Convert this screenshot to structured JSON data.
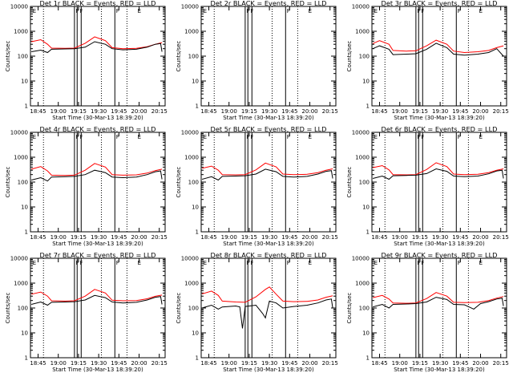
{
  "figure": {
    "xlabel": "Start Time (30-Mar-13 18:39:20)",
    "ylabel": "Counts/sec",
    "x_ticks": [
      "18:45",
      "19:00",
      "19:15",
      "19:30",
      "19:45",
      "20:00",
      "20:15"
    ],
    "y_ticks": [
      "1",
      "10",
      "100",
      "1000",
      "10000"
    ],
    "colors": {
      "events": "#000000",
      "lld": "#ff0000",
      "frame": "#000000"
    }
  },
  "chart_data": [
    {
      "type": "line",
      "title": "Det 1r BLACK = Events, RED = LLD",
      "ylim": [
        1,
        10000
      ],
      "xlim": [
        "18:39:20",
        "20:19:20"
      ],
      "log_y": true,
      "gti_dotted": [
        "18:49",
        "19:32",
        "19:51"
      ],
      "saa_solid": [
        "19:12",
        "19:14",
        "19:17",
        "19:42"
      ],
      "flags": [
        {
          "t": "18:40",
          "c": "E"
        },
        {
          "t": "19:12",
          "c": "F"
        },
        {
          "t": "19:15",
          "c": "F"
        },
        {
          "t": "19:42",
          "c": "F"
        },
        {
          "t": "19:58",
          "c": "E"
        }
      ],
      "series": [
        {
          "name": "BLACK = Events",
          "x": [
            "18:40",
            "18:47",
            "18:52",
            "18:55",
            "19:05",
            "19:12",
            "19:20",
            "19:27",
            "19:35",
            "19:40",
            "19:48",
            "19:58",
            "20:06",
            "20:12",
            "20:16",
            "20:17"
          ],
          "values": [
            150,
            175,
            140,
            190,
            195,
            200,
            230,
            380,
            300,
            200,
            180,
            190,
            230,
            300,
            320,
            150
          ]
        },
        {
          "name": "RED = LLD",
          "x": [
            "18:40",
            "18:47",
            "18:52",
            "18:55",
            "19:05",
            "19:12",
            "19:20",
            "19:27",
            "19:35",
            "19:40",
            "19:48",
            "19:58",
            "20:06",
            "20:12",
            "20:17"
          ],
          "values": [
            380,
            460,
            300,
            210,
            205,
            210,
            330,
            600,
            420,
            220,
            200,
            205,
            240,
            300,
            350
          ]
        }
      ]
    },
    {
      "type": "line",
      "title": "Det 2r BLACK = Events, RED = LLD",
      "ylim": [
        1,
        10000
      ],
      "xlim": [
        "18:39:20",
        "20:19:20"
      ],
      "log_y": true,
      "gti_dotted": [
        "18:49",
        "19:32",
        "19:51"
      ],
      "saa_solid": [
        "19:12",
        "19:14",
        "19:17",
        "19:42"
      ],
      "flags": [
        {
          "t": "18:40",
          "c": "E"
        },
        {
          "t": "19:12",
          "c": "F"
        },
        {
          "t": "19:15",
          "c": "F"
        },
        {
          "t": "19:42",
          "c": "F"
        },
        {
          "t": "19:58",
          "c": "E"
        }
      ],
      "series": []
    },
    {
      "type": "line",
      "title": "Det 3r BLACK = Events, RED = LLD",
      "ylim": [
        1,
        10000
      ],
      "xlim": [
        "18:39:20",
        "20:19:20"
      ],
      "log_y": true,
      "gti_dotted": [
        "18:49",
        "19:32",
        "19:51"
      ],
      "saa_solid": [
        "19:12",
        "19:14",
        "19:17",
        "19:42"
      ],
      "flags": [
        {
          "t": "18:40",
          "c": "E"
        },
        {
          "t": "19:12",
          "c": "F"
        },
        {
          "t": "19:15",
          "c": "F"
        },
        {
          "t": "19:42",
          "c": "F"
        },
        {
          "t": "19:58",
          "c": "E"
        }
      ],
      "series": [
        {
          "name": "BLACK = Events",
          "x": [
            "18:40",
            "18:45",
            "18:52",
            "18:55",
            "19:05",
            "19:12",
            "19:20",
            "19:27",
            "19:35",
            "19:40",
            "19:48",
            "19:58",
            "20:06",
            "20:12",
            "20:17"
          ],
          "values": [
            200,
            260,
            190,
            115,
            120,
            125,
            190,
            330,
            220,
            120,
            110,
            120,
            140,
            200,
            100
          ]
        },
        {
          "name": "RED = LLD",
          "x": [
            "18:40",
            "18:45",
            "18:52",
            "18:55",
            "19:05",
            "19:12",
            "19:20",
            "19:27",
            "19:35",
            "19:40",
            "19:48",
            "19:58",
            "20:06",
            "20:12",
            "20:17"
          ],
          "values": [
            320,
            420,
            300,
            170,
            160,
            165,
            260,
            440,
            300,
            160,
            140,
            150,
            170,
            220,
            260
          ]
        }
      ]
    },
    {
      "type": "line",
      "title": "Det 4r BLACK = Events, RED = LLD",
      "ylim": [
        1,
        10000
      ],
      "xlim": [
        "18:39:20",
        "20:19:20"
      ],
      "log_y": true,
      "gti_dotted": [
        "18:49",
        "19:32",
        "19:51"
      ],
      "saa_solid": [
        "19:12",
        "19:14",
        "19:17",
        "19:42"
      ],
      "flags": [
        {
          "t": "18:40",
          "c": "E"
        },
        {
          "t": "19:12",
          "c": "F"
        },
        {
          "t": "19:15",
          "c": "F"
        },
        {
          "t": "19:42",
          "c": "F"
        },
        {
          "t": "19:58",
          "c": "E"
        }
      ],
      "series": [
        {
          "name": "BLACK = Events",
          "x": [
            "18:40",
            "18:47",
            "18:52",
            "18:55",
            "19:05",
            "19:12",
            "19:20",
            "19:27",
            "19:35",
            "19:40",
            "19:48",
            "19:58",
            "20:06",
            "20:12",
            "20:16",
            "20:17"
          ],
          "values": [
            120,
            150,
            110,
            160,
            165,
            170,
            200,
            300,
            240,
            160,
            150,
            160,
            200,
            260,
            280,
            130
          ]
        },
        {
          "name": "RED = LLD",
          "x": [
            "18:40",
            "18:47",
            "18:52",
            "18:55",
            "19:05",
            "19:12",
            "19:20",
            "19:27",
            "19:35",
            "19:40",
            "19:48",
            "19:58",
            "20:06",
            "20:12",
            "20:17"
          ],
          "values": [
            330,
            420,
            280,
            190,
            185,
            190,
            300,
            560,
            400,
            200,
            190,
            195,
            230,
            290,
            330
          ]
        }
      ]
    },
    {
      "type": "line",
      "title": "Det 5r BLACK = Events, RED = LLD",
      "ylim": [
        1,
        10000
      ],
      "xlim": [
        "18:39:20",
        "20:19:20"
      ],
      "log_y": true,
      "gti_dotted": [
        "18:49",
        "19:32",
        "19:51"
      ],
      "saa_solid": [
        "19:12",
        "19:14",
        "19:17",
        "19:42"
      ],
      "flags": [
        {
          "t": "18:40",
          "c": "E"
        },
        {
          "t": "19:12",
          "c": "F"
        },
        {
          "t": "19:15",
          "c": "F"
        },
        {
          "t": "19:42",
          "c": "F"
        },
        {
          "t": "19:58",
          "c": "E"
        }
      ],
      "series": [
        {
          "name": "BLACK = Events",
          "x": [
            "18:40",
            "18:47",
            "18:52",
            "18:55",
            "19:05",
            "19:12",
            "19:20",
            "19:27",
            "19:35",
            "19:40",
            "19:48",
            "19:58",
            "20:06",
            "20:12",
            "20:16",
            "20:17"
          ],
          "values": [
            130,
            165,
            120,
            170,
            175,
            180,
            210,
            330,
            260,
            170,
            160,
            170,
            210,
            270,
            290,
            140
          ]
        },
        {
          "name": "RED = LLD",
          "x": [
            "18:40",
            "18:47",
            "18:52",
            "18:55",
            "19:05",
            "19:12",
            "19:20",
            "19:27",
            "19:35",
            "19:40",
            "19:48",
            "19:58",
            "20:06",
            "20:12",
            "20:17"
          ],
          "values": [
            360,
            440,
            300,
            200,
            195,
            200,
            310,
            580,
            410,
            210,
            200,
            205,
            240,
            300,
            340
          ]
        }
      ]
    },
    {
      "type": "line",
      "title": "Det 6r BLACK = Events, RED = LLD",
      "ylim": [
        1,
        10000
      ],
      "xlim": [
        "18:39:20",
        "20:19:20"
      ],
      "log_y": true,
      "gti_dotted": [
        "18:49",
        "19:32",
        "19:51"
      ],
      "saa_solid": [
        "19:12",
        "19:14",
        "19:17",
        "19:42"
      ],
      "flags": [
        {
          "t": "18:40",
          "c": "E"
        },
        {
          "t": "19:12",
          "c": "F"
        },
        {
          "t": "19:15",
          "c": "F"
        },
        {
          "t": "19:42",
          "c": "F"
        },
        {
          "t": "19:58",
          "c": "E"
        }
      ],
      "series": [
        {
          "name": "BLACK = Events",
          "x": [
            "18:40",
            "18:47",
            "18:52",
            "18:55",
            "19:05",
            "19:12",
            "19:20",
            "19:27",
            "19:35",
            "19:40",
            "19:48",
            "19:58",
            "20:06",
            "20:12",
            "20:16",
            "20:17"
          ],
          "values": [
            140,
            175,
            130,
            180,
            185,
            190,
            220,
            340,
            270,
            175,
            165,
            175,
            215,
            280,
            300,
            140
          ]
        },
        {
          "name": "RED = LLD",
          "x": [
            "18:40",
            "18:47",
            "18:52",
            "18:55",
            "19:05",
            "19:12",
            "19:20",
            "19:27",
            "19:35",
            "19:40",
            "19:48",
            "19:58",
            "20:06",
            "20:12",
            "20:17"
          ],
          "values": [
            380,
            460,
            310,
            200,
            195,
            200,
            320,
            600,
            420,
            210,
            200,
            205,
            240,
            300,
            340
          ]
        }
      ]
    },
    {
      "type": "line",
      "title": "Det 7r BLACK = Events, RED = LLD",
      "ylim": [
        1,
        10000
      ],
      "xlim": [
        "18:39:20",
        "20:19:20"
      ],
      "log_y": true,
      "gti_dotted": [
        "18:49",
        "19:32",
        "19:51"
      ],
      "saa_solid": [
        "19:12",
        "19:14",
        "19:17",
        "19:42"
      ],
      "flags": [
        {
          "t": "18:40",
          "c": "E"
        },
        {
          "t": "19:12",
          "c": "F"
        },
        {
          "t": "19:15",
          "c": "F"
        },
        {
          "t": "19:42",
          "c": "F"
        },
        {
          "t": "19:58",
          "c": "E"
        }
      ],
      "series": [
        {
          "name": "BLACK = Events",
          "x": [
            "18:40",
            "18:47",
            "18:52",
            "18:55",
            "19:05",
            "19:12",
            "19:20",
            "19:27",
            "19:35",
            "19:40",
            "19:48",
            "19:58",
            "20:06",
            "20:12",
            "20:16",
            "20:17"
          ],
          "values": [
            140,
            175,
            130,
            170,
            175,
            180,
            210,
            320,
            260,
            175,
            160,
            170,
            210,
            270,
            290,
            140
          ]
        },
        {
          "name": "RED = LLD",
          "x": [
            "18:40",
            "18:47",
            "18:52",
            "18:55",
            "19:05",
            "19:12",
            "19:20",
            "19:27",
            "19:35",
            "19:40",
            "19:48",
            "19:58",
            "20:06",
            "20:12",
            "20:17"
          ],
          "values": [
            360,
            440,
            300,
            195,
            190,
            195,
            300,
            560,
            400,
            205,
            195,
            200,
            235,
            295,
            330
          ]
        }
      ]
    },
    {
      "type": "line",
      "title": "Det 8r BLACK = Events, RED = LLD",
      "ylim": [
        1,
        10000
      ],
      "xlim": [
        "18:39:20",
        "20:19:20"
      ],
      "log_y": true,
      "gti_dotted": [
        "18:49",
        "19:32",
        "19:51"
      ],
      "saa_solid": [
        "19:12",
        "19:14",
        "19:17",
        "19:42"
      ],
      "flags": [
        {
          "t": "18:40",
          "c": "E"
        },
        {
          "t": "19:12",
          "c": "F"
        },
        {
          "t": "19:15",
          "c": "F"
        },
        {
          "t": "19:42",
          "c": "F"
        },
        {
          "t": "19:58",
          "c": "E"
        }
      ],
      "series": [
        {
          "name": "BLACK = Events",
          "x": [
            "18:40",
            "18:47",
            "18:52",
            "18:55",
            "19:05",
            "19:08",
            "19:10",
            "19:12",
            "19:20",
            "19:25",
            "19:27",
            "19:30",
            "19:35",
            "19:40",
            "19:48",
            "19:58",
            "20:06",
            "20:12",
            "20:16",
            "20:17"
          ],
          "values": [
            100,
            130,
            90,
            110,
            120,
            110,
            15,
            115,
            130,
            60,
            40,
            190,
            160,
            100,
            115,
            130,
            160,
            210,
            230,
            100
          ]
        },
        {
          "name": "RED = LLD",
          "x": [
            "18:40",
            "18:47",
            "18:52",
            "18:55",
            "19:05",
            "19:12",
            "19:20",
            "19:27",
            "19:30",
            "19:35",
            "19:40",
            "19:48",
            "19:58",
            "20:06",
            "20:12",
            "20:17"
          ],
          "values": [
            370,
            480,
            320,
            190,
            175,
            170,
            280,
            560,
            700,
            360,
            190,
            180,
            185,
            210,
            270,
            310
          ]
        }
      ]
    },
    {
      "type": "line",
      "title": "Det 9r BLACK = Events, RED = LLD",
      "ylim": [
        1,
        10000
      ],
      "xlim": [
        "18:39:20",
        "20:19:20"
      ],
      "log_y": true,
      "gti_dotted": [
        "18:49",
        "19:32",
        "19:51"
      ],
      "saa_solid": [
        "19:12",
        "19:14",
        "19:17",
        "19:42"
      ],
      "flags": [
        {
          "t": "18:40",
          "c": "E"
        },
        {
          "t": "19:12",
          "c": "F"
        },
        {
          "t": "19:15",
          "c": "F"
        },
        {
          "t": "19:42",
          "c": "F"
        },
        {
          "t": "19:58",
          "c": "E"
        }
      ],
      "series": [
        {
          "name": "BLACK = Events",
          "x": [
            "18:40",
            "18:47",
            "18:52",
            "18:55",
            "19:05",
            "19:12",
            "19:20",
            "19:27",
            "19:35",
            "19:40",
            "19:48",
            "19:55",
            "20:00",
            "20:06",
            "20:12",
            "20:16",
            "20:17"
          ],
          "values": [
            110,
            140,
            100,
            140,
            145,
            150,
            175,
            270,
            220,
            140,
            135,
            90,
            150,
            180,
            230,
            250,
            120
          ]
        },
        {
          "name": "RED = LLD",
          "x": [
            "18:40",
            "18:47",
            "18:52",
            "18:55",
            "19:05",
            "19:12",
            "19:20",
            "19:27",
            "19:35",
            "19:40",
            "19:48",
            "19:58",
            "20:06",
            "20:12",
            "20:17"
          ],
          "values": [
            260,
            320,
            230,
            160,
            155,
            160,
            240,
            420,
            300,
            170,
            165,
            170,
            200,
            250,
            290
          ]
        }
      ]
    }
  ]
}
